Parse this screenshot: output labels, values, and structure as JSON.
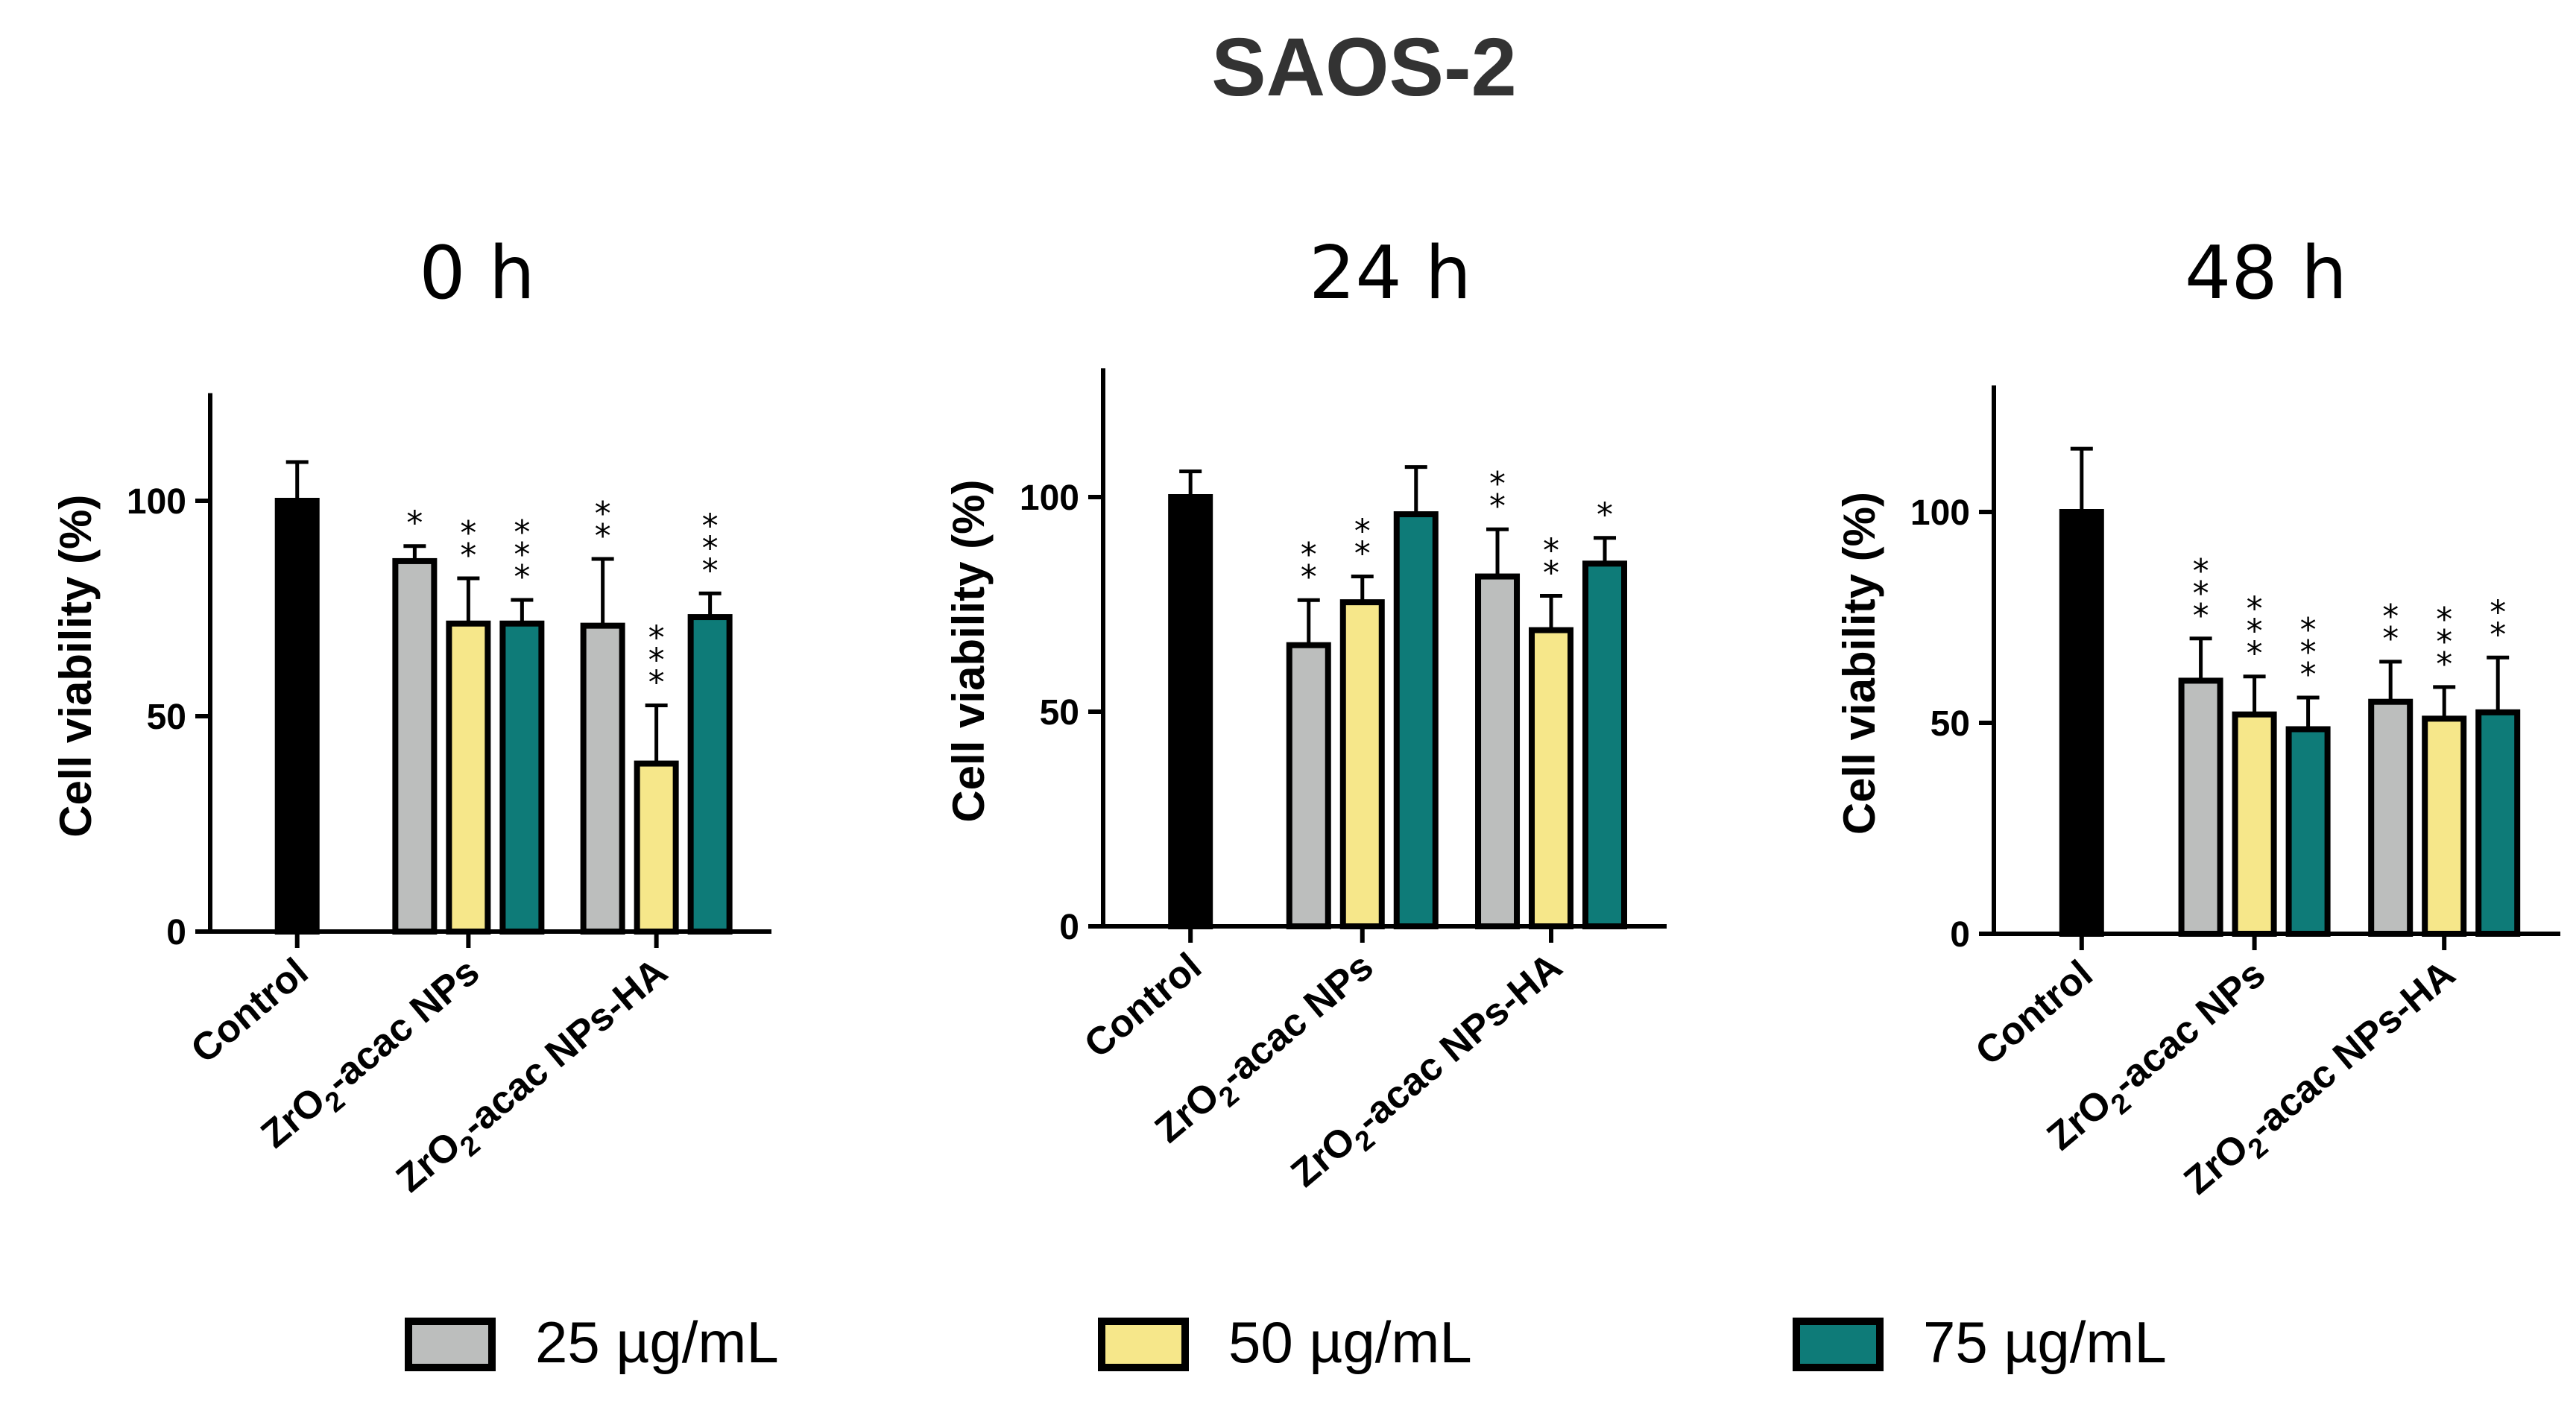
{
  "title": "SAOS-2",
  "colors": {
    "control": "#000000",
    "25": "#bcbebd",
    "50": "#f6e78a",
    "75": "#0e7b78"
  },
  "chart_data": [
    {
      "type": "bar",
      "title": "0 h",
      "ylabel": "Cell viability (%)",
      "ylim": [
        0,
        125
      ],
      "yticks": [
        "0",
        "50",
        "100"
      ],
      "categories": [
        "Control",
        "ZrO2-acac NPs",
        "ZrO2-acac NPs-HA"
      ],
      "bars": [
        {
          "group": "Control",
          "series": "control",
          "value": 100,
          "error": 9,
          "sig": ""
        },
        {
          "group": "ZrO2-acac NPs",
          "series": "25 µg/mL",
          "value": 86,
          "error": 3.5,
          "sig": "*"
        },
        {
          "group": "ZrO2-acac NPs",
          "series": "50 µg/mL",
          "value": 71.5,
          "error": 10.5,
          "sig": "**"
        },
        {
          "group": "ZrO2-acac NPs",
          "series": "75 µg/mL",
          "value": 71.5,
          "error": 5.5,
          "sig": "***"
        },
        {
          "group": "ZrO2-acac NPs-HA",
          "series": "25 µg/mL",
          "value": 71,
          "error": 15.5,
          "sig": "**"
        },
        {
          "group": "ZrO2-acac NPs-HA",
          "series": "50 µg/mL",
          "value": 39,
          "error": 13.5,
          "sig": "***"
        },
        {
          "group": "ZrO2-acac NPs-HA",
          "series": "75 µg/mL",
          "value": 73,
          "error": 5.5,
          "sig": "***"
        }
      ]
    },
    {
      "type": "bar",
      "title": "24 h",
      "ylabel": "Cell viability (%)",
      "ylim": [
        0,
        130
      ],
      "yticks": [
        "0",
        "50",
        "100"
      ],
      "categories": [
        "Control",
        "ZrO2-acac NPs",
        "ZrO2-acac NPs-HA"
      ],
      "bars": [
        {
          "group": "Control",
          "series": "control",
          "value": 100,
          "error": 6,
          "sig": ""
        },
        {
          "group": "ZrO2-acac NPs",
          "series": "25 µg/mL",
          "value": 65.5,
          "error": 10.5,
          "sig": "**"
        },
        {
          "group": "ZrO2-acac NPs",
          "series": "50 µg/mL",
          "value": 75.5,
          "error": 6,
          "sig": "**"
        },
        {
          "group": "ZrO2-acac NPs",
          "series": "75 µg/mL",
          "value": 96,
          "error": 11,
          "sig": ""
        },
        {
          "group": "ZrO2-acac NPs-HA",
          "series": "25 µg/mL",
          "value": 81.5,
          "error": 11,
          "sig": "**"
        },
        {
          "group": "ZrO2-acac NPs-HA",
          "series": "50 µg/mL",
          "value": 69,
          "error": 8,
          "sig": "**"
        },
        {
          "group": "ZrO2-acac NPs-HA",
          "series": "75 µg/mL",
          "value": 84.5,
          "error": 6,
          "sig": "*"
        }
      ]
    },
    {
      "type": "bar",
      "title": "48 h",
      "ylabel": "Cell viability (%)",
      "ylim": [
        0,
        130
      ],
      "yticks": [
        "0",
        "50",
        "100"
      ],
      "categories": [
        "Control",
        "ZrO2-acac NPs",
        "ZrO2-acac NPs-HA"
      ],
      "bars": [
        {
          "group": "Control",
          "series": "control",
          "value": 100,
          "error": 15,
          "sig": ""
        },
        {
          "group": "ZrO2-acac NPs",
          "series": "25 µg/mL",
          "value": 60,
          "error": 10,
          "sig": "***"
        },
        {
          "group": "ZrO2-acac NPs",
          "series": "50 µg/mL",
          "value": 52,
          "error": 9,
          "sig": "***"
        },
        {
          "group": "ZrO2-acac NPs",
          "series": "75 µg/mL",
          "value": 48.5,
          "error": 7.5,
          "sig": "***"
        },
        {
          "group": "ZrO2-acac NPs-HA",
          "series": "25 µg/mL",
          "value": 55,
          "error": 9.5,
          "sig": "**"
        },
        {
          "group": "ZrO2-acac NPs-HA",
          "series": "50 µg/mL",
          "value": 51,
          "error": 7.5,
          "sig": "***"
        },
        {
          "group": "ZrO2-acac NPs-HA",
          "series": "75 µg/mL",
          "value": 52.5,
          "error": 13,
          "sig": "**"
        }
      ]
    }
  ],
  "legend": [
    {
      "label": "25 µg/mL",
      "color": "#bcbebd"
    },
    {
      "label": "50 µg/mL",
      "color": "#f6e78a"
    },
    {
      "label": "75 µg/mL",
      "color": "#0e7b78"
    }
  ]
}
